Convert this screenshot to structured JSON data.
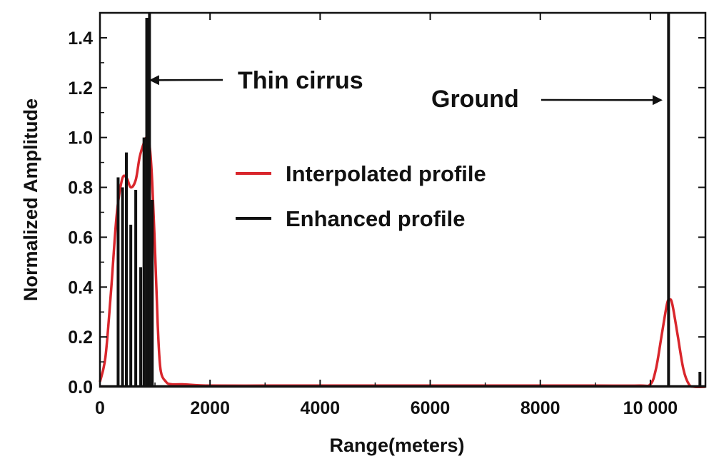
{
  "chart_data": {
    "type": "line",
    "xlabel": "Range(meters)",
    "ylabel": "Normalized Amplitude",
    "xlim": [
      0,
      11000
    ],
    "ylim": [
      0,
      1.5
    ],
    "x_ticks": [
      0,
      2000,
      4000,
      6000,
      8000,
      10000
    ],
    "x_tick_labels": [
      "0",
      "2000",
      "4000",
      "6000",
      "8000",
      "10 000"
    ],
    "y_ticks": [
      0.0,
      0.2,
      0.4,
      0.6,
      0.8,
      1.0,
      1.2,
      1.4
    ],
    "y_tick_labels": [
      "0.0",
      "0.2",
      "0.4",
      "0.6",
      "0.8",
      "1.0",
      "1.2",
      "1.4"
    ],
    "grid": false,
    "legend_position": "center",
    "series": [
      {
        "name": "Interpolated profile",
        "color": "#d9262c",
        "x": [
          0,
          100,
          200,
          300,
          400,
          480,
          560,
          650,
          720,
          800,
          850,
          900,
          950,
          1000,
          1050,
          1100,
          1200,
          1300,
          1500,
          2000,
          3000,
          4000,
          5000,
          6000,
          7000,
          8000,
          9000,
          9800,
          10000,
          10100,
          10200,
          10300,
          10350,
          10400,
          10500,
          10600,
          10700,
          10800,
          11000
        ],
        "y": [
          0.02,
          0.12,
          0.38,
          0.68,
          0.83,
          0.84,
          0.8,
          0.83,
          0.92,
          0.98,
          1.0,
          0.97,
          0.82,
          0.55,
          0.25,
          0.07,
          0.02,
          0.01,
          0.01,
          0.005,
          0.005,
          0.005,
          0.005,
          0.005,
          0.005,
          0.005,
          0.005,
          0.005,
          0.01,
          0.07,
          0.2,
          0.33,
          0.35,
          0.33,
          0.2,
          0.07,
          0.01,
          0.0,
          0.0
        ]
      },
      {
        "name": "Enhanced profile",
        "color": "#111111",
        "spikes": [
          {
            "x": 330,
            "y": 0.84
          },
          {
            "x": 410,
            "y": 0.8
          },
          {
            "x": 480,
            "y": 0.94
          },
          {
            "x": 560,
            "y": 0.65
          },
          {
            "x": 650,
            "y": 0.79
          },
          {
            "x": 740,
            "y": 0.48
          },
          {
            "x": 800,
            "y": 1.0
          },
          {
            "x": 850,
            "y": 1.48
          },
          {
            "x": 900,
            "y": 1.5
          },
          {
            "x": 950,
            "y": 0.75
          },
          {
            "x": 10330,
            "y": 1.5
          },
          {
            "x": 10900,
            "y": 0.06
          }
        ]
      }
    ],
    "annotations": [
      {
        "text": "Thin cirrus",
        "x": 920,
        "y": 1.23,
        "arrow": "left"
      },
      {
        "text": "Ground",
        "x": 10300,
        "y": 1.15,
        "arrow": "right"
      }
    ]
  }
}
